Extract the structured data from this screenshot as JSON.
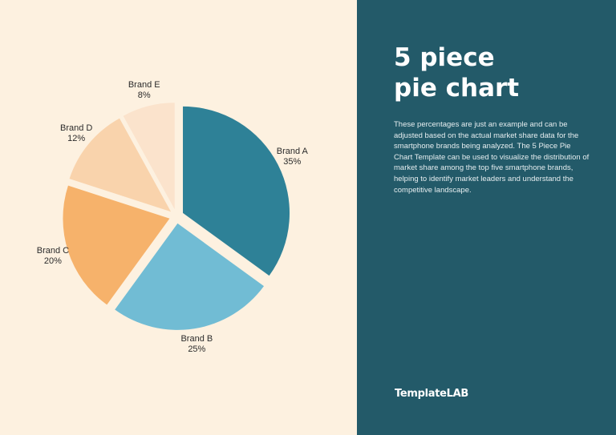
{
  "title_lines": [
    "5 piece",
    "pie chart"
  ],
  "description": "These percentages are just an example and can be adjusted based on the actual market share data for the smartphone brands being analyzed. The 5 Piece Pie Chart Template can be used to visualize the distribution of market share among the top five smartphone brands, helping to identify market leaders and understand the competitive landscape.",
  "brand_logo": "TemplateLAB",
  "colors": {
    "left_background": "#fdf1e0",
    "right_background": "#235a69"
  },
  "chart_data": {
    "type": "pie",
    "slices": [
      {
        "label": "Brand A",
        "value": 35,
        "value_label": "35%",
        "color": "#2e8197"
      },
      {
        "label": "Brand B",
        "value": 25,
        "value_label": "25%",
        "color": "#71bcd4"
      },
      {
        "label": "Brand C",
        "value": 20,
        "value_label": "20%",
        "color": "#f6b26b"
      },
      {
        "label": "Brand D",
        "value": 12,
        "value_label": "12%",
        "color": "#f9d3ac"
      },
      {
        "label": "Brand E",
        "value": 8,
        "value_label": "8%",
        "color": "#fbe3cc"
      }
    ]
  }
}
